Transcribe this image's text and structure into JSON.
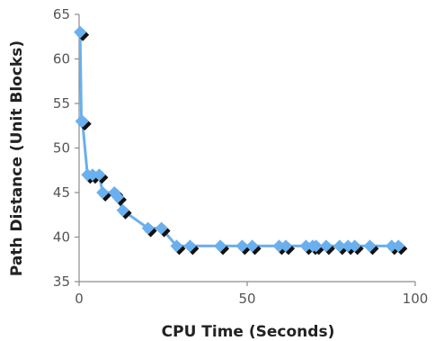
{
  "chart_data": {
    "type": "scatter",
    "title": "",
    "xlabel": "CPU Time (Seconds)",
    "ylabel": "Path Distance (Unit Blocks)",
    "xlim": [
      0,
      100
    ],
    "ylim": [
      35,
      65
    ],
    "xticks": [
      0,
      50,
      100
    ],
    "yticks": [
      35,
      40,
      45,
      50,
      55,
      60,
      65
    ],
    "x_tick_labels": [
      "0",
      "50",
      "100"
    ],
    "y_tick_labels": [
      "35",
      "40",
      "45",
      "50",
      "55",
      "60",
      "65"
    ],
    "grid": false,
    "legend": "none",
    "line_connected": true,
    "marker": "diamond",
    "colors": {
      "series": "#6ab0ee",
      "shadow": "#111111",
      "axis": "#8c8c8c",
      "text": "#222222",
      "tick_text": "#555555"
    },
    "series": [
      {
        "x": [
          0.3,
          0.7,
          1.0,
          2.5,
          4.0,
          6.0,
          7.0,
          10.5,
          11.5,
          13.0,
          20.5,
          24.5,
          29.0,
          33.0,
          42.0,
          48.5,
          51.5,
          59.5,
          61.5,
          67.5,
          69.5,
          70.5,
          73.5,
          77.5,
          80.0,
          82.0,
          86.5,
          93.0,
          95.0
        ],
        "y": [
          63,
          53,
          53,
          47,
          47,
          47,
          45,
          45,
          44.5,
          43,
          41,
          41,
          39,
          39,
          39,
          39,
          39,
          39,
          39,
          39,
          39,
          39,
          39,
          39,
          39,
          39,
          39,
          39,
          39
        ]
      }
    ]
  }
}
